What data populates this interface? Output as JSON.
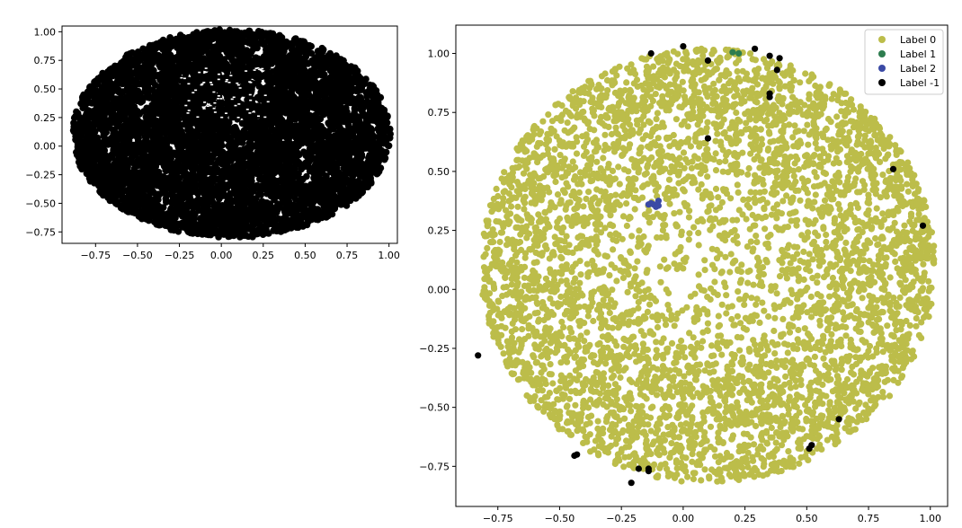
{
  "chart_data": [
    {
      "type": "scatter",
      "title": "",
      "xlabel": "",
      "ylabel": "",
      "xlim": [
        -0.95,
        1.05
      ],
      "ylim": [
        -0.85,
        1.05
      ],
      "xticks": [
        -0.75,
        -0.5,
        -0.25,
        0.0,
        0.25,
        0.5,
        0.75,
        1.0
      ],
      "yticks": [
        -0.75,
        -0.5,
        -0.25,
        0.0,
        0.25,
        0.5,
        0.75,
        1.0
      ],
      "xtick_labels": [
        "−0.75",
        "−0.50",
        "−0.25",
        "0.00",
        "0.25",
        "0.50",
        "0.75",
        "1.00"
      ],
      "ytick_labels": [
        "−0.75",
        "−0.50",
        "−0.25",
        "0.00",
        "0.25",
        "0.50",
        "0.75",
        "1.00"
      ],
      "grid": false,
      "legend": null,
      "series": [
        {
          "color": "#000000",
          "description": "dense point cloud filling ellipse",
          "ellipse": {
            "cx": 0.06,
            "cy": 0.11,
            "rx": 0.95,
            "ry": 0.94
          },
          "n_points": 6000
        }
      ]
    },
    {
      "type": "scatter",
      "title": "",
      "xlabel": "",
      "ylabel": "",
      "xlim": [
        -0.92,
        1.07
      ],
      "ylim": [
        -0.92,
        1.12
      ],
      "xticks": [
        -0.75,
        -0.5,
        -0.25,
        0.0,
        0.25,
        0.5,
        0.75,
        1.0
      ],
      "yticks": [
        -0.75,
        -0.5,
        -0.25,
        0.0,
        0.25,
        0.5,
        0.75,
        1.0
      ],
      "xtick_labels": [
        "−0.75",
        "−0.50",
        "−0.25",
        "0.00",
        "0.25",
        "0.50",
        "0.75",
        "1.00"
      ],
      "ytick_labels": [
        "−0.75",
        "−0.50",
        "−0.25",
        "0.00",
        "0.25",
        "0.50",
        "0.75",
        "1.00"
      ],
      "grid": false,
      "legend_placement": "top-right",
      "series": [
        {
          "name": "Label 0",
          "color": "#bcbd4a",
          "description": "disk of points centred near (0.1, 0.1) radius ~0.92",
          "disk": {
            "cx": 0.1,
            "cy": 0.1,
            "r": 0.92
          },
          "n_points": 5000
        },
        {
          "name": "Label 1",
          "color": "#2e7d4f",
          "points": [
            [
              0.2,
              1.005
            ],
            [
              0.225,
              1.0
            ]
          ]
        },
        {
          "name": "Label 2",
          "color": "#3b4aa5",
          "points": [
            [
              -0.14,
              0.36
            ],
            [
              -0.12,
              0.36
            ],
            [
              -0.1,
              0.375
            ],
            [
              -0.11,
              0.35
            ],
            [
              -0.13,
              0.365
            ],
            [
              -0.1,
              0.355
            ]
          ]
        },
        {
          "name": "Label -1",
          "color": "#000000",
          "points": [
            [
              0.0,
              1.03
            ],
            [
              -0.13,
              1.0
            ],
            [
              0.1,
              0.97
            ],
            [
              0.29,
              1.02
            ],
            [
              0.35,
              0.99
            ],
            [
              0.39,
              0.98
            ],
            [
              0.38,
              0.93
            ],
            [
              0.35,
              0.83
            ],
            [
              0.35,
              0.815
            ],
            [
              0.1,
              0.64
            ],
            [
              0.85,
              0.51
            ],
            [
              0.97,
              0.27
            ],
            [
              -0.83,
              -0.28
            ],
            [
              0.63,
              -0.55
            ],
            [
              0.52,
              -0.66
            ],
            [
              0.51,
              -0.675
            ],
            [
              -0.43,
              -0.7
            ],
            [
              -0.44,
              -0.705
            ],
            [
              -0.18,
              -0.76
            ],
            [
              -0.14,
              -0.76
            ],
            [
              -0.14,
              -0.77
            ],
            [
              -0.21,
              -0.82
            ]
          ]
        }
      ]
    }
  ]
}
